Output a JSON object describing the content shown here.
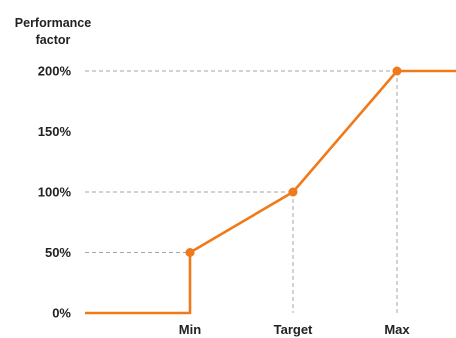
{
  "chart_data": {
    "type": "line",
    "ylabel_lines": [
      "Performance",
      "factor"
    ],
    "xlabel": "",
    "categories": [
      "Min",
      "Target",
      "Max"
    ],
    "y_tick_labels": [
      "0%",
      "50%",
      "100%",
      "150%",
      "200%"
    ],
    "ylim": [
      0,
      200
    ],
    "y_unit": "%",
    "grid": "dashed guide lines from each key point to the axes",
    "series": [
      {
        "color": "#F07A1A",
        "points": [
          {
            "x": "start",
            "y": 0,
            "marker": false
          },
          {
            "x": "Min",
            "y": 0,
            "marker": false
          },
          {
            "x": "Min",
            "y": 50,
            "marker": true
          },
          {
            "x": "Target",
            "y": 100,
            "marker": true
          },
          {
            "x": "Max",
            "y": 200,
            "marker": true
          },
          {
            "x": "end",
            "y": 200,
            "marker": false
          }
        ]
      }
    ],
    "colors": {
      "line": "#F07A1A",
      "guide": "#a6a6a6",
      "text": "#222222"
    }
  }
}
